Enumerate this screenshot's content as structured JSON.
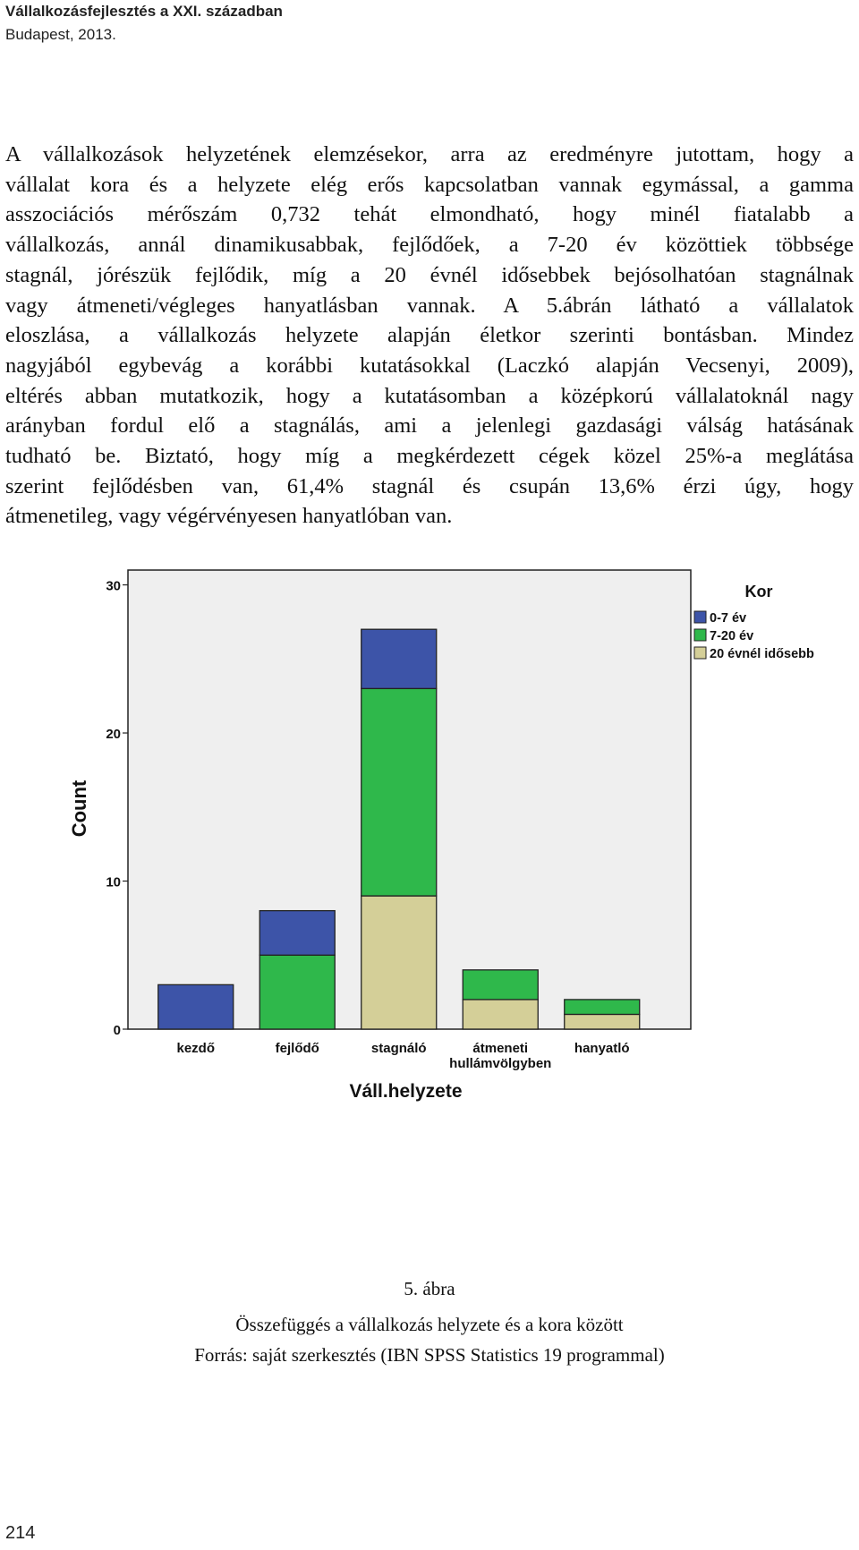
{
  "header": {
    "title": "Vállalkozásfejlesztés a XXI. században",
    "subtitle": "Budapest, 2013."
  },
  "paragraph_lines": [
    "A vállalkozások helyzetének elemzésekor, arra az eredményre jutottam, hogy a",
    "vállalat kora és a helyzete elég erős kapcsolatban vannak egymással, a gamma",
    "asszociációs mérőszám 0,732 tehát elmondható, hogy minél fiatalabb a",
    "vállalkozás, annál dinamikusabbak, fejlődőek, a 7-20 év közöttiek többsége",
    "stagnál, jórészük fejlődik, míg a 20 évnél idősebbek bejósolhatóan stagnálnak",
    "vagy átmeneti/végleges hanyatlásban vannak. A 5.ábrán látható a vállalatok",
    "eloszlása, a vállalkozás helyzete alapján életkor szerinti bontásban. Mindez",
    "nagyjából egybevág a korábbi kutatásokkal (Laczkó alapján Vecsenyi, 2009),",
    "eltérés abban mutatkozik, hogy a kutatásomban  a középkorú vállalatoknál nagy",
    "arányban fordul elő a stagnálás, ami a jelenlegi gazdasági válság hatásának",
    "tudható be. Biztató, hogy míg a megkérdezett cégek közel 25%-a meglátása",
    "szerint fejlődésben van, 61,4% stagnál és csupán 13,6% érzi úgy, hogy",
    "átmenetileg, vagy végérvényesen hanyatlóban van."
  ],
  "chart_data": {
    "type": "bar",
    "stacked": true,
    "categories": [
      "kezdő",
      "fejlődő",
      "stagnáló",
      "átmeneti hullámvölgyben",
      "hanyatló"
    ],
    "category_label_lines": [
      [
        "kezdő"
      ],
      [
        "fejlődő"
      ],
      [
        "stagnáló"
      ],
      [
        "átmeneti",
        "hullámvölgyben"
      ],
      [
        "hanyatló"
      ]
    ],
    "series": [
      {
        "name": "20 évnél idősebb",
        "color": "#d4cf98",
        "values": [
          0,
          0,
          9,
          2,
          1
        ]
      },
      {
        "name": "7-20 év",
        "color": "#2fb84b",
        "values": [
          0,
          5,
          14,
          2,
          1
        ]
      },
      {
        "name": "0-7 év",
        "color": "#3d54a8",
        "values": [
          3,
          3,
          4,
          0,
          0
        ]
      }
    ],
    "legend_title": "Kor",
    "legend_order": [
      "0-7 év",
      "7-20 év",
      "20 évnél idősebb"
    ],
    "legend_position": "top-right",
    "xlabel": "Váll.helyzete",
    "ylabel": "Count",
    "yticks": [
      0,
      10,
      20,
      30
    ],
    "ylim": [
      0,
      31
    ],
    "plot_background": "#efefef",
    "grid": false
  },
  "caption": {
    "figure_number": "5. ábra",
    "title": "Összefüggés a vállalkozás helyzete és a kora között",
    "source": "Forrás: saját szerkesztés (IBN SPSS Statistics 19 programmal)"
  },
  "page_number": "214"
}
